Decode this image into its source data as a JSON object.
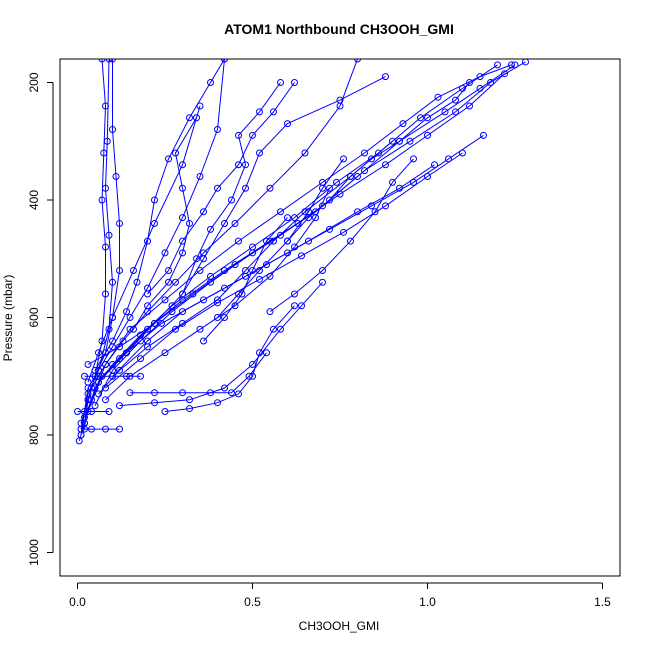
{
  "chart_data": {
    "type": "line",
    "title": "ATOM1 Northbound CH3OOH_GMI",
    "xlabel": "CH3OOH_GMI",
    "ylabel": "Pressure (mbar)",
    "xlim": [
      -0.05,
      1.55
    ],
    "ylim": [
      1040,
      160
    ],
    "y_reversed": true,
    "xticks": [
      0.0,
      0.5,
      1.0,
      1.5
    ],
    "xtick_labels": [
      "0.0",
      "0.5",
      "1.0",
      "1.5"
    ],
    "yticks": [
      200,
      400,
      600,
      800,
      1000
    ],
    "ytick_labels": [
      "200",
      "400",
      "600",
      "800",
      "1000"
    ],
    "grid": false,
    "legend": "none",
    "marker": "open-circle",
    "color": "#0000ff",
    "series": [
      {
        "x": [
          0.005,
          0.01,
          0.02,
          0.03,
          0.05,
          0.07,
          0.08,
          0.08,
          0.07,
          0.075,
          0.08,
          0.07
        ],
        "y": [
          810,
          800,
          780,
          740,
          700,
          640,
          560,
          480,
          400,
          320,
          240,
          160
        ]
      },
      {
        "x": [
          0.01,
          0.02,
          0.03,
          0.06,
          0.09,
          0.1,
          0.09,
          0.08,
          0.085,
          0.09
        ],
        "y": [
          800,
          760,
          720,
          690,
          620,
          540,
          460,
          380,
          300,
          160
        ]
      },
      {
        "x": [
          0.02,
          0.03,
          0.05,
          0.08,
          0.1,
          0.12,
          0.12,
          0.11,
          0.1,
          0.1
        ],
        "y": [
          790,
          740,
          700,
          660,
          600,
          520,
          440,
          360,
          280,
          160
        ]
      },
      {
        "x": [
          0.01,
          0.03,
          0.06,
          0.1,
          0.15,
          0.2,
          0.25,
          0.3,
          0.35,
          0.4,
          0.42
        ],
        "y": [
          790,
          730,
          690,
          650,
          600,
          550,
          490,
          430,
          360,
          280,
          160
        ]
      },
      {
        "x": [
          0.01,
          0.04,
          0.08,
          0.13,
          0.2,
          0.28,
          0.36,
          0.45,
          0.55,
          0.65,
          0.75,
          0.8
        ],
        "y": [
          780,
          720,
          680,
          640,
          590,
          540,
          490,
          440,
          380,
          320,
          240,
          160
        ]
      },
      {
        "x": [
          0.02,
          0.05,
          0.1,
          0.18,
          0.27,
          0.38,
          0.5,
          0.62,
          0.74,
          0.86,
          0.98,
          1.1,
          1.2
        ],
        "y": [
          780,
          720,
          680,
          630,
          580,
          530,
          480,
          430,
          370,
          320,
          260,
          210,
          170
        ]
      },
      {
        "x": [
          0.02,
          0.06,
          0.12,
          0.2,
          0.3,
          0.42,
          0.55,
          0.68,
          0.8,
          0.92,
          1.05,
          1.15,
          1.25
        ],
        "y": [
          770,
          710,
          670,
          620,
          570,
          520,
          470,
          420,
          360,
          300,
          250,
          210,
          170
        ]
      },
      {
        "x": [
          0.03,
          0.07,
          0.14,
          0.22,
          0.33,
          0.45,
          0.58,
          0.7,
          0.82,
          0.95,
          1.08,
          1.18,
          1.28
        ],
        "y": [
          760,
          700,
          660,
          610,
          560,
          510,
          460,
          410,
          350,
          300,
          250,
          200,
          165
        ]
      },
      {
        "x": [
          0.05,
          0.1,
          0.18,
          0.27,
          0.38,
          0.5,
          0.63,
          0.75,
          0.88,
          1.0,
          1.12,
          1.22
        ],
        "y": [
          750,
          690,
          640,
          590,
          540,
          490,
          440,
          390,
          340,
          290,
          240,
          185
        ]
      },
      {
        "x": [
          0.04,
          0.08,
          0.15,
          0.25,
          0.35,
          0.46,
          0.58,
          0.7,
          0.82,
          0.93,
          1.03,
          1.15,
          1.24
        ],
        "y": [
          740,
          680,
          620,
          570,
          520,
          470,
          420,
          370,
          320,
          270,
          225,
          190,
          170
        ]
      },
      {
        "x": [
          0.08,
          0.15,
          0.25,
          0.35,
          0.45,
          0.55,
          0.62,
          0.68,
          0.72
        ],
        "y": [
          740,
          700,
          660,
          620,
          580,
          530,
          480,
          430,
          380
        ]
      },
      {
        "x": [
          0.06,
          0.12,
          0.2,
          0.3,
          0.4,
          0.48,
          0.56,
          0.65,
          0.78,
          0.9
        ],
        "y": [
          730,
          690,
          650,
          610,
          570,
          520,
          470,
          420,
          360,
          300
        ]
      },
      {
        "x": [
          0.12,
          0.22,
          0.32,
          0.42,
          0.5,
          0.58,
          0.64,
          0.7
        ],
        "y": [
          750,
          745,
          740,
          720,
          680,
          620,
          580,
          540
        ]
      },
      {
        "x": [
          0.25,
          0.32,
          0.4,
          0.46,
          0.5,
          0.52,
          0.56,
          0.62
        ],
        "y": [
          760,
          755,
          745,
          730,
          700,
          660,
          620,
          580
        ]
      },
      {
        "x": [
          0.15,
          0.22,
          0.3,
          0.38,
          0.44,
          0.49,
          0.54
        ],
        "y": [
          728,
          728,
          728,
          728,
          728,
          700,
          660
        ]
      },
      {
        "x": [
          0.02,
          0.06,
          0.1,
          0.14,
          0.18
        ],
        "y": [
          700,
          700,
          700,
          700,
          700
        ]
      },
      {
        "x": [
          0.01,
          0.04,
          0.08,
          0.12
        ],
        "y": [
          790,
          790,
          790,
          790
        ]
      },
      {
        "x": [
          0.0,
          0.04,
          0.09
        ],
        "y": [
          760,
          760,
          760
        ]
      },
      {
        "x": [
          0.03,
          0.12,
          0.22,
          0.3,
          0.36,
          0.42,
          0.48,
          0.52,
          0.6,
          0.75,
          0.88
        ],
        "y": [
          680,
          650,
          610,
          560,
          500,
          440,
          380,
          320,
          270,
          230,
          190
        ]
      },
      {
        "x": [
          0.05,
          0.1,
          0.14,
          0.17,
          0.2,
          0.22,
          0.26,
          0.32,
          0.38,
          0.42
        ],
        "y": [
          690,
          640,
          590,
          540,
          470,
          400,
          330,
          260,
          200,
          160
        ]
      },
      {
        "x": [
          0.03,
          0.06,
          0.1,
          0.16,
          0.22,
          0.3,
          0.35
        ],
        "y": [
          710,
          660,
          600,
          520,
          440,
          340,
          240
        ]
      },
      {
        "x": [
          0.06,
          0.14,
          0.24,
          0.36,
          0.48,
          0.6,
          0.72,
          0.84,
          0.96,
          1.06,
          1.16
        ],
        "y": [
          710,
          660,
          610,
          570,
          530,
          490,
          450,
          410,
          370,
          330,
          290
        ]
      },
      {
        "x": [
          0.08,
          0.18,
          0.28,
          0.4,
          0.52,
          0.64,
          0.76,
          0.88,
          1.0,
          1.1
        ],
        "y": [
          720,
          670,
          620,
          575,
          535,
          495,
          455,
          410,
          360,
          320
        ]
      },
      {
        "x": [
          0.1,
          0.2,
          0.3,
          0.42,
          0.54,
          0.66,
          0.8,
          0.92,
          1.02
        ],
        "y": [
          700,
          640,
          590,
          550,
          510,
          470,
          420,
          380,
          340
        ]
      },
      {
        "x": [
          0.2,
          0.26,
          0.3,
          0.36,
          0.4,
          0.46,
          0.5,
          0.56,
          0.62
        ],
        "y": [
          560,
          520,
          470,
          420,
          380,
          340,
          290,
          250,
          200
        ]
      },
      {
        "x": [
          0.16,
          0.2,
          0.26,
          0.3,
          0.32,
          0.3,
          0.28,
          0.34
        ],
        "y": [
          620,
          580,
          540,
          490,
          440,
          380,
          320,
          260
        ]
      },
      {
        "x": [
          0.3,
          0.34,
          0.38,
          0.44,
          0.48,
          0.46,
          0.52,
          0.58
        ],
        "y": [
          560,
          500,
          450,
          400,
          340,
          290,
          250,
          200
        ]
      },
      {
        "x": [
          0.4,
          0.46,
          0.52,
          0.6,
          0.66,
          0.7,
          0.76
        ],
        "y": [
          600,
          560,
          520,
          470,
          420,
          380,
          330
        ]
      },
      {
        "x": [
          0.55,
          0.62,
          0.7,
          0.78,
          0.85,
          0.9,
          0.96
        ],
        "y": [
          590,
          560,
          520,
          470,
          420,
          370,
          330
        ]
      },
      {
        "x": [
          0.6,
          0.66,
          0.72,
          0.78,
          0.84,
          0.92,
          1.0,
          1.08,
          1.12
        ],
        "y": [
          470,
          430,
          400,
          360,
          330,
          300,
          260,
          230,
          200
        ]
      },
      {
        "x": [
          0.36,
          0.42,
          0.47,
          0.5,
          0.54,
          0.6
        ],
        "y": [
          640,
          600,
          560,
          520,
          470,
          430
        ]
      }
    ]
  }
}
